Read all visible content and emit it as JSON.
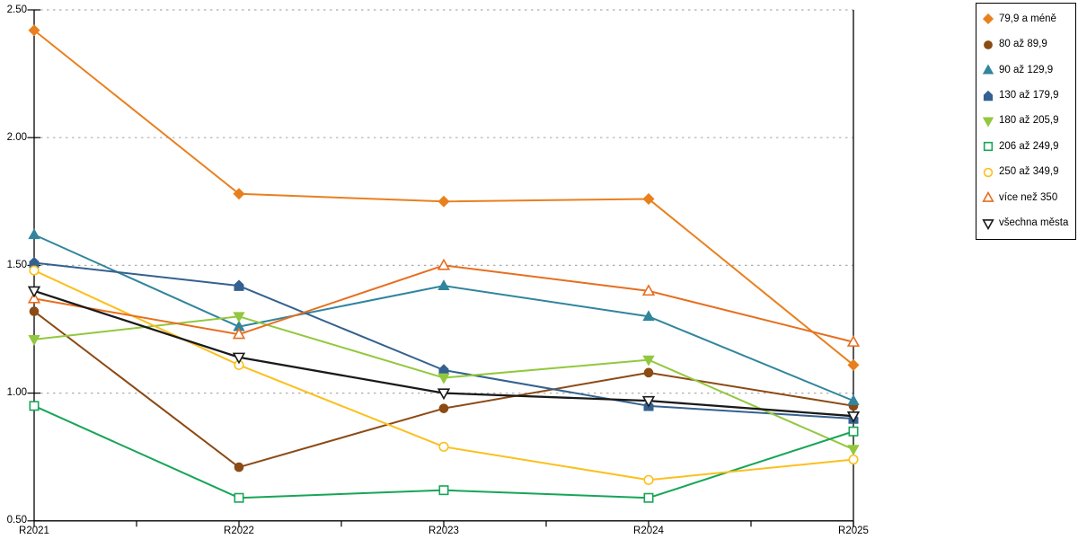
{
  "chart_data": {
    "type": "line",
    "title": "",
    "xlabel": "",
    "ylabel": "",
    "categories": [
      "R2021",
      "R2022",
      "R2023",
      "R2024",
      "R2025"
    ],
    "y_tick_labels": [
      "2.50",
      "2.00",
      "1.50",
      "1.00",
      "0.50"
    ],
    "ylim": [
      0.5,
      2.5
    ],
    "grid": "horizontal dotted gridlines at 1.00, 1.50, 2.00, 2.50",
    "legend_position": "top-right boxed",
    "colors": {
      "axis": "#000000",
      "gridline": "#ADADAD",
      "background": "#FFFFFF"
    },
    "series": [
      {
        "name": "79,9 a méně",
        "marker": "diamond-filled",
        "color": "#E8801E",
        "values": [
          2.42,
          1.78,
          1.75,
          1.76,
          1.11
        ]
      },
      {
        "name": "80 až 89,9",
        "marker": "circle-filled",
        "color": "#8C4A14",
        "values": [
          1.32,
          0.71,
          0.94,
          1.08,
          0.95
        ]
      },
      {
        "name": "90 až 129,9",
        "marker": "triangle-up-filled",
        "color": "#31859C",
        "values": [
          1.62,
          1.26,
          1.42,
          1.3,
          0.97
        ]
      },
      {
        "name": "130 až 179,9",
        "marker": "pentagon-filled",
        "color": "#34618F",
        "values": [
          1.51,
          1.42,
          1.09,
          0.95,
          0.9
        ]
      },
      {
        "name": "180 až 205,9",
        "marker": "triangle-down-filled",
        "color": "#92C83D",
        "values": [
          1.21,
          1.3,
          1.06,
          1.13,
          0.78
        ]
      },
      {
        "name": "206 až 249,9",
        "marker": "square-open",
        "color": "#17A558",
        "values": [
          0.95,
          0.59,
          0.62,
          0.59,
          0.85
        ]
      },
      {
        "name": "250 až 349,9",
        "marker": "circle-open",
        "color": "#FBC01E",
        "values": [
          1.48,
          1.11,
          0.79,
          0.66,
          0.74
        ]
      },
      {
        "name": "více než 350",
        "marker": "triangle-up-open",
        "color": "#E76E1E",
        "values": [
          1.37,
          1.23,
          1.5,
          1.4,
          1.2
        ]
      },
      {
        "name": "všechna města",
        "marker": "triangle-down-open",
        "color": "#1A1A1A",
        "values": [
          1.4,
          1.14,
          1.0,
          0.97,
          0.91
        ]
      }
    ]
  }
}
